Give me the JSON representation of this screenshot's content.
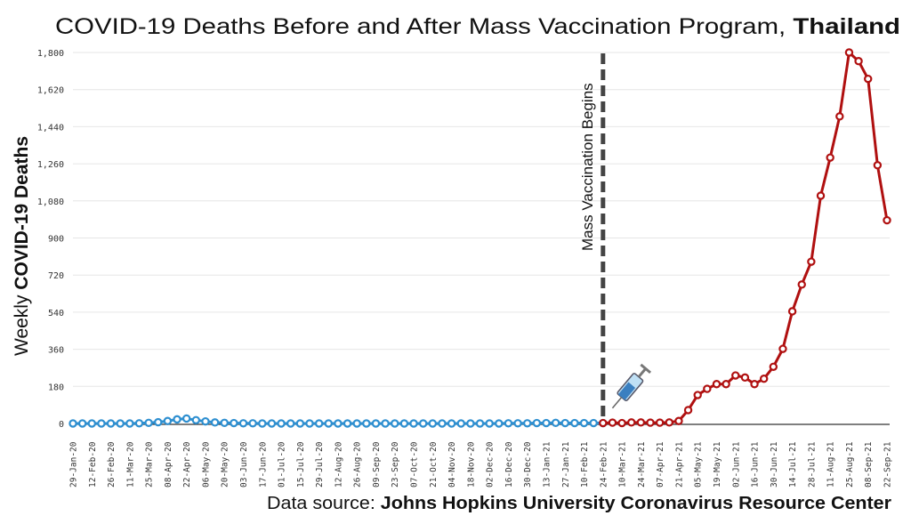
{
  "chart_data": {
    "type": "line",
    "title": "COVID-19 Deaths Before and After Mass Vaccination Program, ",
    "title_bold": "Thailand",
    "ylabel_prefix": "Weekly ",
    "ylabel_bold": "COVID-19 Deaths",
    "xlabel": "",
    "ylim": [
      0,
      1800
    ],
    "y_ticks": [
      "0",
      "180",
      "360",
      "540",
      "720",
      "900",
      "1,080",
      "1,260",
      "1,440",
      "1,620",
      "1,800"
    ],
    "grid": true,
    "x_tick_labels": [
      "29-Jan-20",
      "12-Feb-20",
      "26-Feb-20",
      "11-Mar-20",
      "25-Mar-20",
      "08-Apr-20",
      "22-Apr-20",
      "06-May-20",
      "20-May-20",
      "03-Jun-20",
      "17-Jun-20",
      "01-Jul-20",
      "15-Jul-20",
      "29-Jul-20",
      "12-Aug-20",
      "26-Aug-20",
      "09-Sep-20",
      "23-Sep-20",
      "07-Oct-20",
      "21-Oct-20",
      "04-Nov-20",
      "18-Nov-20",
      "02-Dec-20",
      "16-Dec-20",
      "30-Dec-20",
      "13-Jan-21",
      "27-Jan-21",
      "10-Feb-21",
      "24-Feb-21",
      "10-Mar-21",
      "24-Mar-21",
      "07-Apr-21",
      "21-Apr-21",
      "05-May-21",
      "19-May-21",
      "02-Jun-21",
      "16-Jun-21",
      "30-Jun-21",
      "14-Jul-21",
      "28-Jul-21",
      "11-Aug-21",
      "25-Aug-21",
      "08-Sep-21",
      "22-Sep-21"
    ],
    "x_frequency": "weekly",
    "series": [
      {
        "start": "29-Jan-20",
        "color": "#2e8fd0",
        "values": [
          0,
          0,
          0,
          0,
          0,
          0,
          0,
          1,
          3,
          6,
          12,
          20,
          24,
          16,
          10,
          5,
          3,
          2,
          1,
          1,
          0,
          0,
          0,
          0,
          0,
          0,
          0,
          0,
          0,
          0,
          0,
          0,
          0,
          0,
          0,
          0,
          0,
          0,
          0,
          0,
          0,
          0,
          0,
          0,
          0,
          0,
          1,
          1,
          1,
          2,
          2,
          3,
          2,
          2,
          2,
          2,
          2
        ]
      },
      {
        "start": "24-Feb-21",
        "color": "#b01010",
        "values": [
          2,
          4,
          2,
          5,
          5,
          4,
          4,
          5,
          12,
          65,
          138,
          168,
          191,
          191,
          233,
          223,
          191,
          217,
          275,
          362,
          544,
          674,
          785,
          1105,
          1290,
          1490,
          1800,
          1758,
          1672,
          1253,
          986
        ]
      }
    ],
    "annotations": {
      "vline_at": "24-Feb-21",
      "vline_label": "Mass Vaccination Begins",
      "icon": "syringe-icon"
    }
  },
  "source": {
    "prefix": "Data source: ",
    "bold": "Johns Hopkins University Coronavirus Resource Center"
  }
}
